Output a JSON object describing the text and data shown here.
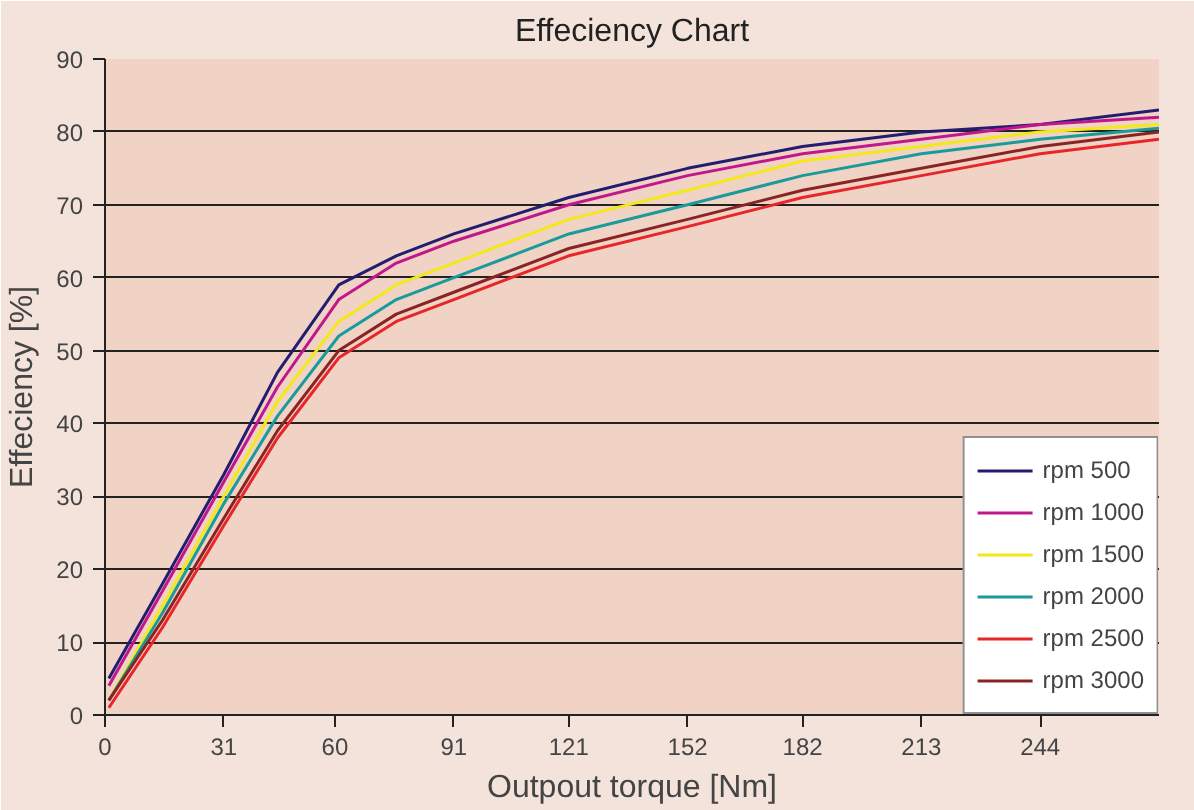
{
  "chart_data": {
    "type": "line",
    "title": "Effeciency Chart",
    "xlabel": "Outpout torque [Nm]",
    "ylabel": "Effeciency [%]",
    "x": [
      1,
      15,
      31,
      45,
      61,
      76,
      91,
      121,
      152,
      182,
      213,
      244,
      275
    ],
    "series": [
      {
        "name": "rpm 500",
        "color": "#231c70",
        "values": [
          5,
          18,
          33,
          47,
          59,
          63,
          66,
          71,
          75,
          78,
          80,
          81,
          83
        ]
      },
      {
        "name": "rpm 1000",
        "color": "#c0188c",
        "values": [
          4,
          17,
          32,
          45,
          57,
          62,
          65,
          70,
          74,
          77,
          79,
          81,
          82
        ]
      },
      {
        "name": "rpm 1500",
        "color": "#f2e81a",
        "values": [
          2,
          15,
          30,
          43,
          54,
          59,
          62,
          68,
          72,
          76,
          78,
          80,
          81
        ]
      },
      {
        "name": "rpm 2000",
        "color": "#1a9a9a",
        "values": [
          2,
          14,
          29,
          41,
          52,
          57,
          60,
          66,
          70,
          74,
          77,
          79,
          80.5
        ]
      },
      {
        "name": "rpm 2500",
        "color": "#e8262a",
        "values": [
          1,
          12,
          26,
          38,
          49,
          54,
          57,
          63,
          67,
          71,
          74,
          77,
          79
        ]
      },
      {
        "name": "rpm 3000",
        "color": "#8a2424",
        "values": [
          2,
          13,
          27,
          39,
          50,
          55,
          58,
          64,
          68,
          72,
          75,
          78,
          80
        ]
      }
    ],
    "xlim": [
      0,
      275
    ],
    "xticks": [
      0,
      31,
      60,
      91,
      121,
      152,
      182,
      213,
      244
    ],
    "ylim": [
      0,
      90
    ],
    "yticks": [
      0,
      10,
      20,
      30,
      40,
      50,
      60,
      70,
      80,
      90
    ],
    "grid": "y",
    "legend": "bottom right",
    "line_style": "solid",
    "marker": "none"
  }
}
